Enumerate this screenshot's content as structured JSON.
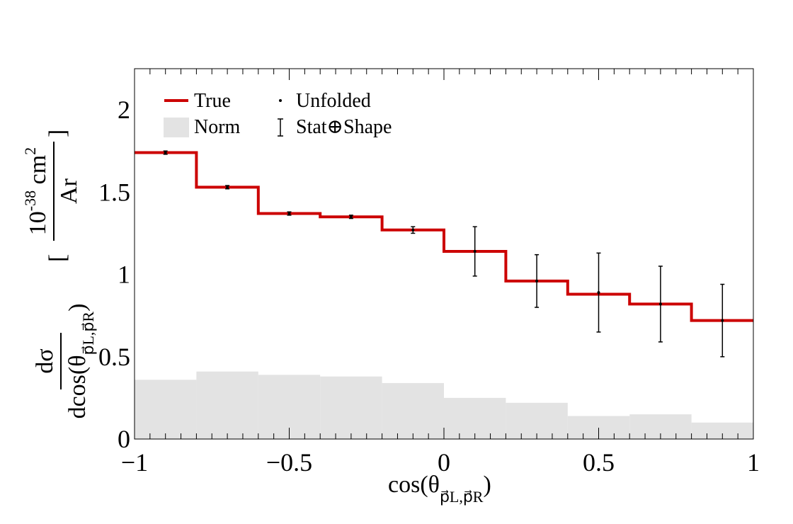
{
  "chart_data": {
    "type": "step",
    "xlim": [
      -1,
      1
    ],
    "ylim": [
      0,
      2.25
    ],
    "x_ticks": [
      -1,
      -0.5,
      0,
      0.5,
      1
    ],
    "x_tick_labels": [
      "−1",
      "−0.5",
      "0",
      "0.5",
      "1"
    ],
    "y_ticks": [
      0,
      0.5,
      1,
      1.5,
      2
    ],
    "y_tick_labels": [
      "0",
      "0.5",
      "1",
      "1.5",
      "2"
    ],
    "xlabel": {
      "main": "cos(θ",
      "sub": "p⃗L,p⃗R",
      "end": ")"
    },
    "ylabel": {
      "numerator": "dσ",
      "denominator": "dcos(θ",
      "denominator_sub": "p⃗L,p⃗R",
      "denominator_end": ")",
      "unit_prefix": "10",
      "unit_exp": "-38",
      "unit_main": " cm",
      "unit_exp2": "2",
      "unit_den": "Ar"
    },
    "bin_edges": [
      -1,
      -0.8,
      -0.6,
      -0.4,
      -0.2,
      0,
      0.2,
      0.4,
      0.6,
      0.8,
      1
    ],
    "series": [
      {
        "name": "True",
        "kind": "step-line",
        "color": "#cc0000",
        "values": [
          1.74,
          1.53,
          1.37,
          1.35,
          1.27,
          1.14,
          0.96,
          0.88,
          0.82,
          0.72
        ]
      },
      {
        "name": "Norm",
        "kind": "filled-histogram",
        "color": "#e3e3e3",
        "values": [
          0.36,
          0.41,
          0.39,
          0.38,
          0.34,
          0.25,
          0.22,
          0.14,
          0.15,
          0.1
        ]
      },
      {
        "name": "Unfolded",
        "kind": "points",
        "color": "#000000",
        "x": [
          -0.9,
          -0.7,
          -0.5,
          -0.3,
          -0.1,
          0.1,
          0.3,
          0.5,
          0.7,
          0.9
        ],
        "values": [
          1.74,
          1.53,
          1.37,
          1.35,
          1.27,
          1.14,
          0.96,
          0.89,
          0.82,
          0.72
        ]
      },
      {
        "name": "Stat⊕Shape",
        "kind": "error-bars",
        "color": "#000000",
        "errors": [
          0.01,
          0.01,
          0.01,
          0.01,
          0.02,
          0.15,
          0.16,
          0.24,
          0.23,
          0.22
        ]
      }
    ],
    "legend": {
      "placement": "top-left",
      "entries": [
        "True",
        "Unfolded",
        "Norm",
        "Stat⊕Shape"
      ]
    },
    "grid": false
  }
}
